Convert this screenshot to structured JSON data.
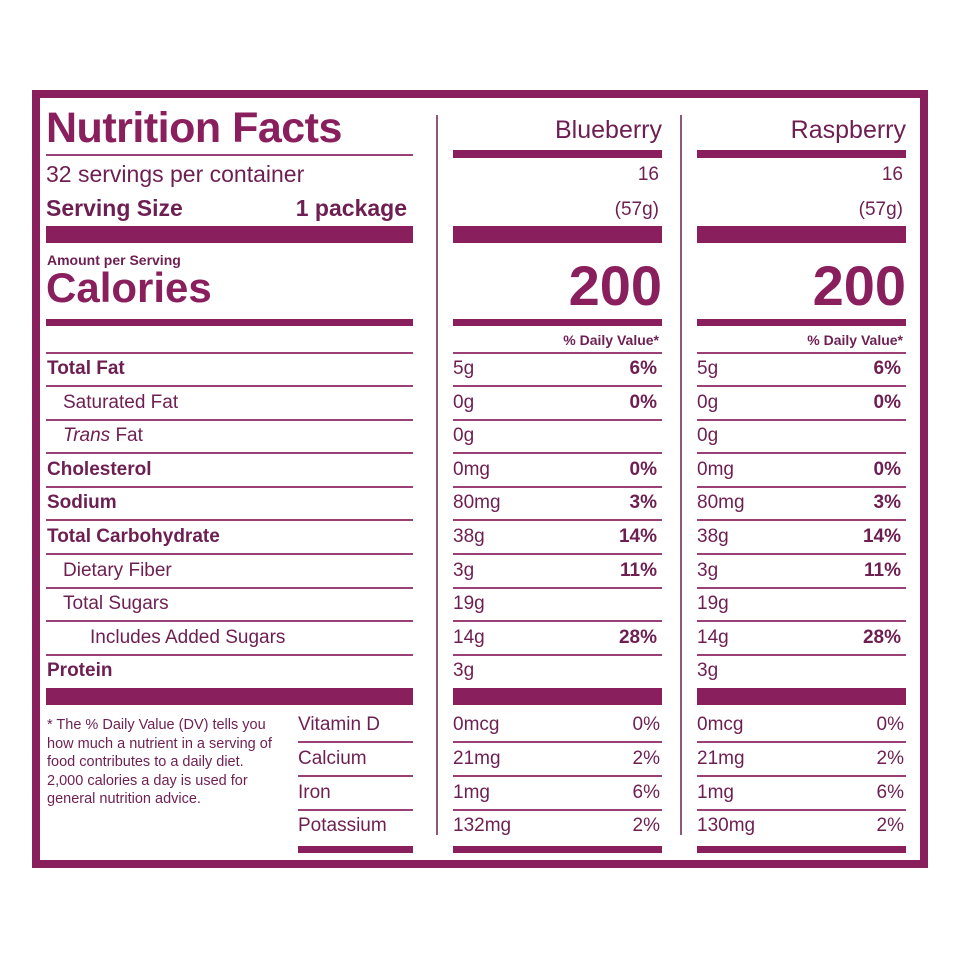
{
  "label": {
    "title": "Nutrition Facts",
    "servings_per_container": "32 servings per container",
    "serving_size_label": "Serving Size",
    "serving_size_value": "1 package",
    "amount_per_serving": "Amount per Serving",
    "calories_label": "Calories",
    "footnote": "* The % Daily Value (DV) tells you how much a nutrient in a serving of food contributes to a daily diet. 2,000 calories a day is used for general nutrition advice.",
    "color": "#8a1f5e"
  },
  "nutrients": [
    {
      "label": "Total Fat",
      "bold": true,
      "indent": 0
    },
    {
      "label": "Saturated Fat",
      "bold": false,
      "indent": 1
    },
    {
      "label_italic": "Trans",
      "label": " Fat",
      "bold": false,
      "indent": 1
    },
    {
      "label": "Cholesterol",
      "bold": true,
      "indent": 0
    },
    {
      "label": "Sodium",
      "bold": true,
      "indent": 0
    },
    {
      "label": "Total Carbohydrate",
      "bold": true,
      "indent": 0
    },
    {
      "label": "Dietary Fiber",
      "bold": false,
      "indent": 1
    },
    {
      "label": "Total Sugars",
      "bold": false,
      "indent": 1
    },
    {
      "label": "Includes Added Sugars",
      "bold": false,
      "indent": 2
    },
    {
      "label": "Protein",
      "bold": true,
      "indent": 0
    }
  ],
  "vitamins": [
    "Vitamin D",
    "Calcium",
    "Iron",
    "Potassium"
  ],
  "products": [
    {
      "name": "Blueberry",
      "servings": "16",
      "serving_size": "(57g)",
      "calories": "200",
      "dv_header": "% Daily Value*",
      "nutrients": [
        {
          "amount": "5g",
          "dv": "6%"
        },
        {
          "amount": "0g",
          "dv": "0%"
        },
        {
          "amount": "0g",
          "dv": ""
        },
        {
          "amount": "0mg",
          "dv": "0%"
        },
        {
          "amount": "80mg",
          "dv": "3%"
        },
        {
          "amount": "38g",
          "dv": "14%"
        },
        {
          "amount": "3g",
          "dv": "11%"
        },
        {
          "amount": "19g",
          "dv": ""
        },
        {
          "amount": "14g",
          "dv": "28%"
        },
        {
          "amount": "3g",
          "dv": ""
        }
      ],
      "vitamins": [
        {
          "amount": "0mcg",
          "dv": "0%"
        },
        {
          "amount": "21mg",
          "dv": "2%"
        },
        {
          "amount": "1mg",
          "dv": "6%"
        },
        {
          "amount": "132mg",
          "dv": "2%"
        }
      ]
    },
    {
      "name": "Raspberry",
      "servings": "16",
      "serving_size": "(57g)",
      "calories": "200",
      "dv_header": "% Daily Value*",
      "nutrients": [
        {
          "amount": "5g",
          "dv": "6%"
        },
        {
          "amount": "0g",
          "dv": "0%"
        },
        {
          "amount": "0g",
          "dv": ""
        },
        {
          "amount": "0mg",
          "dv": "0%"
        },
        {
          "amount": "80mg",
          "dv": "3%"
        },
        {
          "amount": "38g",
          "dv": "14%"
        },
        {
          "amount": "3g",
          "dv": "11%"
        },
        {
          "amount": "19g",
          "dv": ""
        },
        {
          "amount": "14g",
          "dv": "28%"
        },
        {
          "amount": "3g",
          "dv": ""
        }
      ],
      "vitamins": [
        {
          "amount": "0mcg",
          "dv": "0%"
        },
        {
          "amount": "21mg",
          "dv": "2%"
        },
        {
          "amount": "1mg",
          "dv": "6%"
        },
        {
          "amount": "130mg",
          "dv": "2%"
        }
      ]
    }
  ]
}
